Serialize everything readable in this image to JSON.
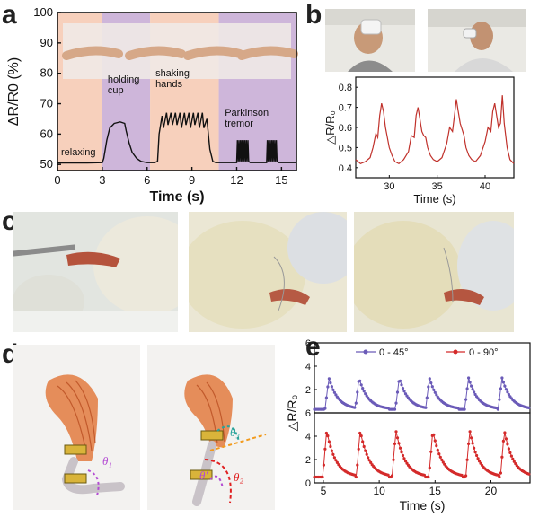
{
  "panels": {
    "a": {
      "letter": "a"
    },
    "b": {
      "letter": "b"
    },
    "c": {
      "letter": "c"
    },
    "d": {
      "letter": "d"
    },
    "e": {
      "letter": "e"
    }
  },
  "colors": {
    "relax_bg": "#f6c8b0",
    "purple_bg": "#c6a9d4",
    "trace_a": "#111111",
    "trace_b": "#c0312b",
    "series_45": "#6b5bb8",
    "series_90": "#d42a2a",
    "theta1": "#b34bd3",
    "theta2": "#e02020",
    "theta3": "#2aa39a",
    "orange_dash": "#f29b1d"
  },
  "chart_data": [
    {
      "id": "a",
      "type": "line",
      "xlabel": "Time (s)",
      "ylabel": "ΔR/R0 (%)",
      "xlim": [
        0,
        16
      ],
      "ylim": [
        48,
        100
      ],
      "x_ticks": [
        0,
        3,
        6,
        9,
        12,
        15
      ],
      "y_ticks": [
        50,
        60,
        70,
        80,
        90,
        100
      ],
      "regions": [
        {
          "label": "relaxing",
          "x": [
            0,
            3.0
          ],
          "color": "relax"
        },
        {
          "label": "holding\ncup",
          "x": [
            3.0,
            6.2
          ],
          "color": "purple"
        },
        {
          "label": "shaking\nhands",
          "x": [
            6.2,
            10.8
          ],
          "color": "relax"
        },
        {
          "label": "Parkinson\ntremor",
          "x": [
            10.8,
            16
          ],
          "color": "purple"
        }
      ],
      "series": [
        {
          "x": [
            0,
            1,
            2,
            3,
            3.1,
            3.3,
            3.5,
            3.8,
            4.2,
            4.5,
            4.6,
            4.8,
            5.0,
            5.3,
            5.6,
            6.0,
            6.5,
            6.7,
            6.8,
            7.0,
            7.1,
            7.3,
            7.4,
            7.6,
            7.7,
            7.9,
            8.0,
            8.2,
            8.3,
            8.5,
            8.6,
            8.8,
            8.9,
            9.1,
            9.2,
            9.4,
            9.5,
            9.7,
            9.8,
            10.0,
            10.2,
            10.4,
            10.6,
            11,
            11.5,
            12.0,
            12.05,
            12.1,
            12.15,
            12.2,
            12.25,
            12.3,
            12.35,
            12.4,
            12.45,
            12.5,
            12.55,
            12.6,
            12.65,
            12.7,
            12.75,
            12.8,
            12.9,
            13.5,
            14.0,
            14.05,
            14.1,
            14.15,
            14.2,
            14.25,
            14.3,
            14.35,
            14.4,
            14.45,
            14.5,
            14.55,
            14.6,
            14.65,
            14.7,
            14.8,
            15,
            16
          ],
          "y": [
            50.5,
            50.5,
            50.5,
            50.6,
            52,
            58,
            62,
            63.5,
            64,
            63.5,
            61,
            57,
            54,
            52,
            51,
            50.6,
            50.6,
            51,
            60,
            66,
            62,
            67,
            63,
            67,
            63,
            67,
            63,
            67,
            62,
            67,
            63,
            67,
            62,
            67,
            63,
            67,
            62,
            67,
            62,
            65,
            55,
            51,
            50.6,
            50.6,
            50.6,
            50.6,
            58,
            51,
            58,
            51,
            58,
            51,
            58,
            51,
            58,
            51,
            58,
            51,
            58,
            51,
            58,
            51,
            50.6,
            50.6,
            50.6,
            58,
            51,
            58,
            51,
            58,
            51,
            58,
            51,
            58,
            51,
            58,
            51,
            58,
            51,
            50.6,
            50.6,
            50.6
          ]
        }
      ]
    },
    {
      "id": "b",
      "type": "line",
      "xlabel": "Time (s)",
      "ylabel": "△R/R₀",
      "xlim": [
        26.5,
        43
      ],
      "ylim": [
        0.35,
        0.85
      ],
      "x_ticks": [
        30,
        35,
        40
      ],
      "y_ticks": [
        0.4,
        0.5,
        0.6,
        0.7,
        0.8
      ],
      "series": [
        {
          "x": [
            26.5,
            27,
            27.5,
            28,
            28.3,
            28.6,
            28.8,
            29.0,
            29.2,
            29.4,
            29.6,
            29.8,
            30.0,
            30.3,
            30.6,
            31,
            31.5,
            32,
            32.3,
            32.6,
            32.8,
            33.0,
            33.2,
            33.4,
            33.6,
            33.8,
            34.0,
            34.3,
            34.6,
            35,
            35.5,
            36,
            36.3,
            36.6,
            36.8,
            37.0,
            37.2,
            37.4,
            37.6,
            37.8,
            38.0,
            38.3,
            38.6,
            39,
            39.5,
            40,
            40.3,
            40.6,
            40.8,
            41.0,
            41.2,
            41.4,
            41.6,
            41.8,
            42.0,
            42.3,
            42.6,
            43
          ],
          "y": [
            0.44,
            0.42,
            0.43,
            0.45,
            0.5,
            0.57,
            0.55,
            0.66,
            0.72,
            0.68,
            0.6,
            0.55,
            0.5,
            0.46,
            0.43,
            0.42,
            0.44,
            0.48,
            0.56,
            0.55,
            0.66,
            0.7,
            0.64,
            0.58,
            0.56,
            0.55,
            0.5,
            0.46,
            0.44,
            0.43,
            0.45,
            0.52,
            0.6,
            0.58,
            0.66,
            0.74,
            0.68,
            0.62,
            0.59,
            0.56,
            0.5,
            0.46,
            0.44,
            0.43,
            0.46,
            0.53,
            0.6,
            0.58,
            0.68,
            0.72,
            0.66,
            0.6,
            0.62,
            0.76,
            0.62,
            0.5,
            0.44,
            0.42
          ]
        }
      ]
    },
    {
      "id": "e",
      "type": "line",
      "xlabel": "Time (s)",
      "ylabel": "△R/R₀",
      "xlim": [
        4.2,
        23.5
      ],
      "ylim": [
        0,
        6
      ],
      "x_ticks": [
        5,
        10,
        15,
        20
      ],
      "y_ticks": [
        0,
        2,
        4,
        6
      ],
      "legend": [
        "0 - 45°",
        "0 - 90°"
      ],
      "legend_position": "top-right",
      "series": [
        {
          "name": "0 - 45°",
          "peak_times": [
            5.5,
            8.2,
            11.8,
            14.5,
            18.0,
            21.0
          ],
          "peak": 3.0,
          "base": 0.3
        },
        {
          "name": "0 - 90°",
          "peak_times": [
            5.3,
            8.3,
            11.5,
            14.8,
            18.1,
            21.2
          ],
          "peak": 4.5,
          "base": 0.5
        }
      ]
    }
  ],
  "labels_d": {
    "theta1": "θ₁",
    "theta2": "θ₂",
    "theta3": "θ₃",
    "theta_prime": "θ'"
  }
}
